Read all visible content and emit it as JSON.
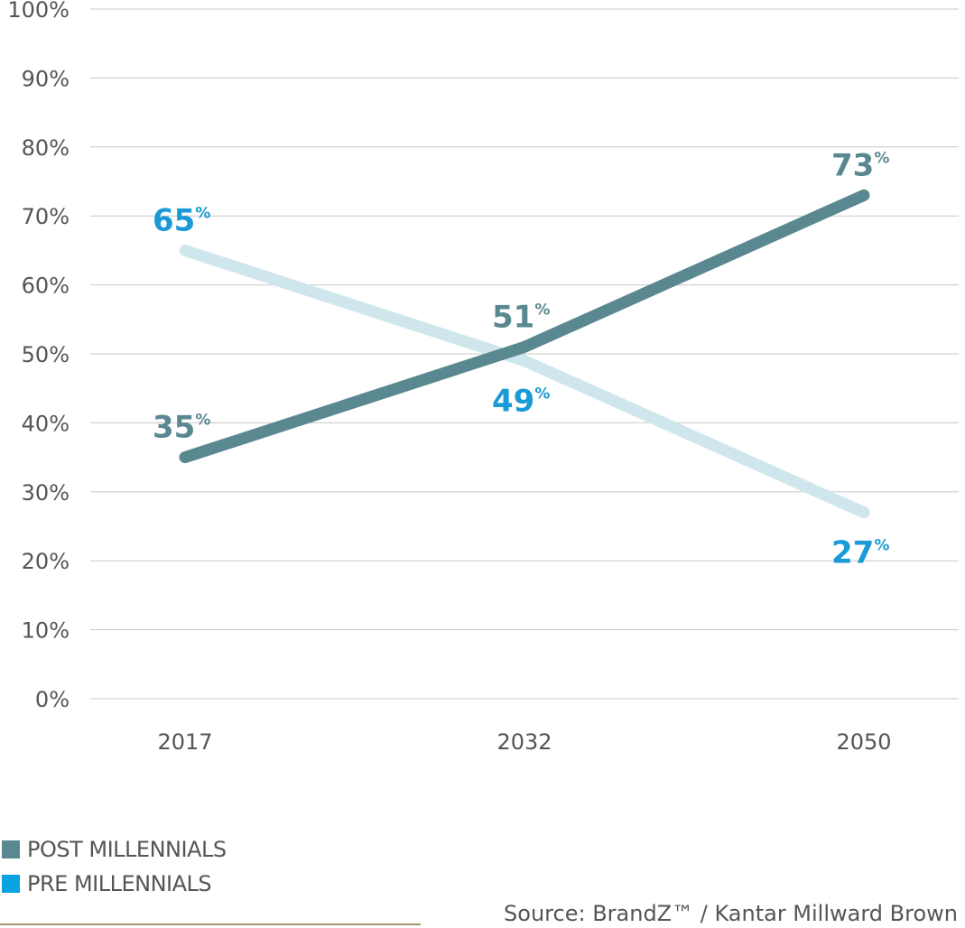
{
  "chart_data": {
    "type": "line",
    "categories": [
      "2017",
      "2032",
      "2050"
    ],
    "series": [
      {
        "name": "POST MILLENNIALS",
        "values": [
          35,
          51,
          73
        ],
        "labels": [
          "35",
          "51",
          "73"
        ],
        "color": "#5a8890",
        "label_color": "#5a8890",
        "label_position": [
          "above",
          "above",
          "above"
        ]
      },
      {
        "name": "PRE MILLENNIALS",
        "values": [
          65,
          49,
          27
        ],
        "labels": [
          "65",
          "49",
          "27"
        ],
        "color": "#cfe7ec",
        "label_color": "#1a9ad6",
        "legend_color": "#0aa2e0",
        "label_position": [
          "above",
          "below",
          "below"
        ]
      }
    ],
    "y_ticks": [
      "0%",
      "10%",
      "20%",
      "30%",
      "40%",
      "50%",
      "60%",
      "70%",
      "80%",
      "90%",
      "100%"
    ],
    "ylim": [
      0,
      100
    ],
    "percent_symbol": "%",
    "grid": true,
    "legend_position": "bottom-left",
    "title": "",
    "xlabel": "",
    "ylabel": ""
  },
  "source": "Source: BrandZ™ / Kantar Millward Brown",
  "colors": {
    "gridline": "#c8c8c8",
    "tick_text": "#555555",
    "source_rule": "#a49a72"
  }
}
